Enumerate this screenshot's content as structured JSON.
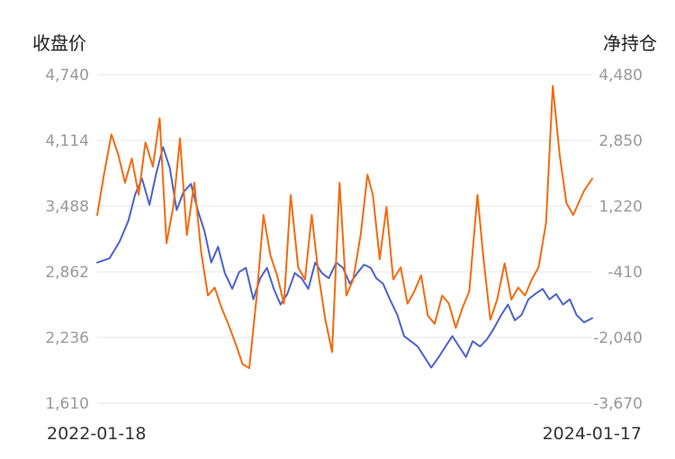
{
  "chart_data": {
    "type": "line",
    "left_axis_title": "收盘价",
    "right_axis_title": "净持仓",
    "left_ticks": [
      "4,740",
      "4,114",
      "3,488",
      "2,862",
      "2,236",
      "1,610"
    ],
    "right_ticks": [
      "4,480",
      "2,850",
      "1,220",
      "-410",
      "-2,040",
      "-3,670"
    ],
    "ylim_left": [
      1610,
      4740
    ],
    "ylim_right": [
      -3670,
      4480
    ],
    "x_start_label": "2022-01-18",
    "x_end_label": "2024-01-17",
    "x_range": [
      "2022-01-18",
      "2024-01-17"
    ],
    "grid": true,
    "series": [
      {
        "axis": "left",
        "color": "#4a63c9",
        "points": [
          [
            "2022-01-18",
            2950
          ],
          [
            "2022-02-05",
            2990
          ],
          [
            "2022-02-20",
            3150
          ],
          [
            "2022-03-05",
            3350
          ],
          [
            "2022-03-15",
            3600
          ],
          [
            "2022-03-25",
            3750
          ],
          [
            "2022-04-05",
            3500
          ],
          [
            "2022-04-15",
            3800
          ],
          [
            "2022-04-25",
            4050
          ],
          [
            "2022-05-05",
            3850
          ],
          [
            "2022-05-15",
            3450
          ],
          [
            "2022-05-25",
            3620
          ],
          [
            "2022-06-05",
            3700
          ],
          [
            "2022-06-15",
            3450
          ],
          [
            "2022-06-25",
            3250
          ],
          [
            "2022-07-05",
            2950
          ],
          [
            "2022-07-15",
            3100
          ],
          [
            "2022-07-25",
            2850
          ],
          [
            "2022-08-05",
            2700
          ],
          [
            "2022-08-15",
            2860
          ],
          [
            "2022-08-25",
            2900
          ],
          [
            "2022-09-05",
            2600
          ],
          [
            "2022-09-15",
            2800
          ],
          [
            "2022-09-25",
            2900
          ],
          [
            "2022-10-05",
            2700
          ],
          [
            "2022-10-15",
            2550
          ],
          [
            "2022-10-25",
            2650
          ],
          [
            "2022-11-05",
            2850
          ],
          [
            "2022-11-15",
            2800
          ],
          [
            "2022-11-25",
            2700
          ],
          [
            "2022-12-05",
            2950
          ],
          [
            "2022-12-15",
            2850
          ],
          [
            "2022-12-25",
            2800
          ],
          [
            "2023-01-05",
            2950
          ],
          [
            "2023-01-15",
            2900
          ],
          [
            "2023-01-25",
            2750
          ],
          [
            "2023-02-05",
            2850
          ],
          [
            "2023-02-15",
            2930
          ],
          [
            "2023-02-25",
            2900
          ],
          [
            "2023-03-05",
            2800
          ],
          [
            "2023-03-15",
            2750
          ],
          [
            "2023-03-25",
            2600
          ],
          [
            "2023-04-05",
            2450
          ],
          [
            "2023-04-15",
            2250
          ],
          [
            "2023-04-25",
            2200
          ],
          [
            "2023-05-05",
            2150
          ],
          [
            "2023-05-15",
            2050
          ],
          [
            "2023-05-25",
            1950
          ],
          [
            "2023-06-05",
            2050
          ],
          [
            "2023-06-15",
            2150
          ],
          [
            "2023-06-25",
            2250
          ],
          [
            "2023-07-05",
            2150
          ],
          [
            "2023-07-15",
            2050
          ],
          [
            "2023-07-25",
            2200
          ],
          [
            "2023-08-05",
            2150
          ],
          [
            "2023-08-15",
            2220
          ],
          [
            "2023-08-25",
            2320
          ],
          [
            "2023-09-05",
            2450
          ],
          [
            "2023-09-15",
            2550
          ],
          [
            "2023-09-25",
            2400
          ],
          [
            "2023-10-05",
            2450
          ],
          [
            "2023-10-15",
            2600
          ],
          [
            "2023-10-25",
            2650
          ],
          [
            "2023-11-05",
            2700
          ],
          [
            "2023-11-15",
            2600
          ],
          [
            "2023-11-25",
            2650
          ],
          [
            "2023-12-05",
            2550
          ],
          [
            "2023-12-15",
            2600
          ],
          [
            "2023-12-25",
            2450
          ],
          [
            "2024-01-05",
            2380
          ],
          [
            "2024-01-17",
            2420
          ]
        ]
      },
      {
        "axis": "right",
        "color": "#f26b0f",
        "points": [
          [
            "2022-01-18",
            1000
          ],
          [
            "2022-01-28",
            2000
          ],
          [
            "2022-02-08",
            3000
          ],
          [
            "2022-02-18",
            2500
          ],
          [
            "2022-02-28",
            1800
          ],
          [
            "2022-03-10",
            2400
          ],
          [
            "2022-03-20",
            1500
          ],
          [
            "2022-03-30",
            2800
          ],
          [
            "2022-04-10",
            2200
          ],
          [
            "2022-04-20",
            3400
          ],
          [
            "2022-04-30",
            300
          ],
          [
            "2022-05-10",
            1200
          ],
          [
            "2022-05-20",
            2900
          ],
          [
            "2022-05-30",
            500
          ],
          [
            "2022-06-10",
            1800
          ],
          [
            "2022-06-20",
            100
          ],
          [
            "2022-06-30",
            -1000
          ],
          [
            "2022-07-10",
            -800
          ],
          [
            "2022-07-20",
            -1300
          ],
          [
            "2022-07-30",
            -1700
          ],
          [
            "2022-08-10",
            -2200
          ],
          [
            "2022-08-20",
            -2700
          ],
          [
            "2022-08-30",
            -2800
          ],
          [
            "2022-09-10",
            -1000
          ],
          [
            "2022-09-20",
            1000
          ],
          [
            "2022-09-30",
            0
          ],
          [
            "2022-10-10",
            -500
          ],
          [
            "2022-10-20",
            -1200
          ],
          [
            "2022-10-30",
            1500
          ],
          [
            "2022-11-10",
            -300
          ],
          [
            "2022-11-20",
            -600
          ],
          [
            "2022-11-30",
            1000
          ],
          [
            "2022-12-10",
            -500
          ],
          [
            "2022-12-20",
            -1600
          ],
          [
            "2022-12-30",
            -2400
          ],
          [
            "2023-01-10",
            1800
          ],
          [
            "2023-01-20",
            -1000
          ],
          [
            "2023-01-30",
            -600
          ],
          [
            "2023-02-10",
            500
          ],
          [
            "2023-02-20",
            2000
          ],
          [
            "2023-02-28",
            1500
          ],
          [
            "2023-03-10",
            -100
          ],
          [
            "2023-03-20",
            1200
          ],
          [
            "2023-03-30",
            -600
          ],
          [
            "2023-04-10",
            -300
          ],
          [
            "2023-04-20",
            -1200
          ],
          [
            "2023-04-30",
            -900
          ],
          [
            "2023-05-10",
            -500
          ],
          [
            "2023-05-20",
            -1500
          ],
          [
            "2023-05-30",
            -1700
          ],
          [
            "2023-06-10",
            -1000
          ],
          [
            "2023-06-20",
            -1200
          ],
          [
            "2023-06-30",
            -1800
          ],
          [
            "2023-07-10",
            -1300
          ],
          [
            "2023-07-20",
            -900
          ],
          [
            "2023-08-01",
            1500
          ],
          [
            "2023-08-10",
            -100
          ],
          [
            "2023-08-20",
            -1600
          ],
          [
            "2023-08-30",
            -1100
          ],
          [
            "2023-09-10",
            -200
          ],
          [
            "2023-09-20",
            -1100
          ],
          [
            "2023-09-30",
            -800
          ],
          [
            "2023-10-10",
            -1000
          ],
          [
            "2023-10-20",
            -600
          ],
          [
            "2023-10-30",
            -300
          ],
          [
            "2023-11-10",
            800
          ],
          [
            "2023-11-20",
            4200
          ],
          [
            "2023-11-30",
            2500
          ],
          [
            "2023-12-10",
            1300
          ],
          [
            "2023-12-20",
            1000
          ],
          [
            "2024-01-05",
            1600
          ],
          [
            "2024-01-17",
            1900
          ]
        ]
      }
    ]
  }
}
